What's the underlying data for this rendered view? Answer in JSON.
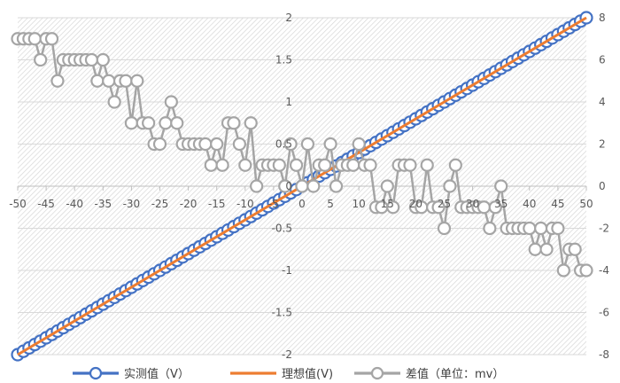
{
  "chart_data": {
    "type": "line",
    "x": {
      "min": -50,
      "max": 50,
      "tick_step": 5,
      "ticks": [
        "-50",
        "-45",
        "-40",
        "-35",
        "-30",
        "-25",
        "-20",
        "-15",
        "-10",
        "-5",
        "0",
        "5",
        "10",
        "15",
        "20",
        "25",
        "30",
        "35",
        "40",
        "45",
        "50"
      ]
    },
    "y_left": {
      "min": -2,
      "max": 2,
      "ticks": [
        "-2",
        "-1.5",
        "-1",
        "-0.5",
        "0",
        "0.5",
        "1",
        "1.5",
        "2"
      ]
    },
    "y_right": {
      "min": -8,
      "max": 8,
      "ticks": [
        "-8",
        "-6",
        "-4",
        "-2",
        "0",
        "2",
        "4",
        "6",
        "8"
      ]
    },
    "grid": "hatched",
    "legend_position": "bottom",
    "series": [
      {
        "name": "实测值（V）",
        "axis": "left",
        "color": "#4472C4",
        "marker": "circle",
        "formula": "y = x / 25",
        "step": 1
      },
      {
        "name": "理想值(V)",
        "axis": "left",
        "color": "#ED7D31",
        "marker": "none",
        "formula": "y = x / 25"
      },
      {
        "name": "差值（单位：mv）",
        "axis": "right",
        "color": "#A5A5A5",
        "marker": "circle",
        "x_start": -50,
        "x_step": 1,
        "values": [
          7,
          7,
          7,
          7,
          6,
          7,
          7,
          5,
          6,
          6,
          6,
          6,
          6,
          6,
          5,
          6,
          5,
          4,
          5,
          5,
          3,
          5,
          3,
          3,
          2,
          2,
          3,
          4,
          3,
          2,
          2,
          2,
          2,
          2,
          1,
          2,
          1,
          3,
          3,
          2,
          1,
          3,
          0,
          1,
          1,
          1,
          1,
          0,
          2,
          1,
          0,
          2,
          0,
          1,
          1,
          2,
          0,
          1,
          1,
          1,
          2,
          1,
          1,
          -1,
          -1,
          0,
          -1,
          1,
          1,
          1,
          -1,
          -1,
          1,
          -1,
          -1,
          -2,
          0,
          1,
          -1,
          -1,
          -1,
          -1,
          -1,
          -2,
          -1,
          0,
          -2,
          -2,
          -2,
          -2,
          -2,
          -3,
          -2,
          -3,
          -2,
          -2,
          -4,
          -3,
          -3,
          -4,
          -4
        ]
      }
    ]
  }
}
